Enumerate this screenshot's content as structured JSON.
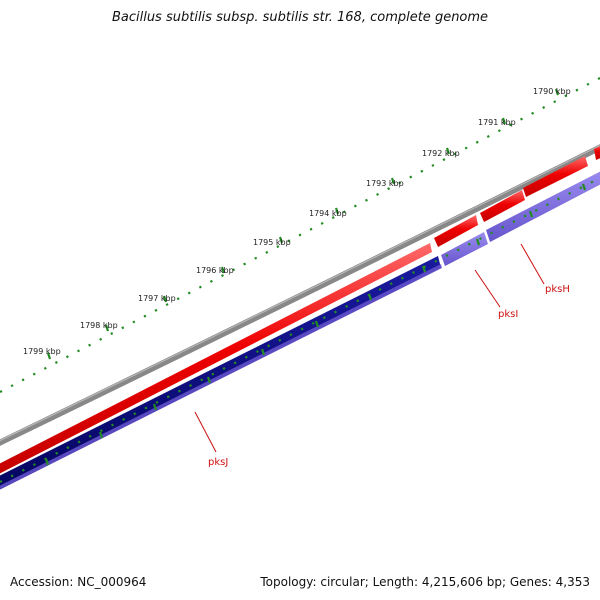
{
  "header": {
    "title": "Bacillus subtilis subsp. subtilis str. 168, complete genome"
  },
  "footer": {
    "accession": "Accession: NC_000964",
    "summary": "Topology: circular; Length: 4,215,606 bp; Genes: 4,353"
  },
  "ruler": {
    "ticks": [
      "1790 kbp",
      "1791 kbp",
      "1792 kbp",
      "1793 kbp",
      "1794 kbp",
      "1795 kbp",
      "1796 kbp",
      "1797 kbp",
      "1798 kbp",
      "1799 kbp"
    ]
  },
  "genes": [
    {
      "name": "pksH",
      "strand": "reverse"
    },
    {
      "name": "pksI",
      "strand": "reverse"
    },
    {
      "name": "pksJ",
      "strand": "reverse"
    }
  ],
  "colors": {
    "backbone": "#888888",
    "forward_cds": "#ee1111",
    "reverse_cds": "#7766dd",
    "reverse_cds_dark": "#0a0a7a",
    "ruler": "#228b22",
    "gene_label": "#cc1111"
  }
}
